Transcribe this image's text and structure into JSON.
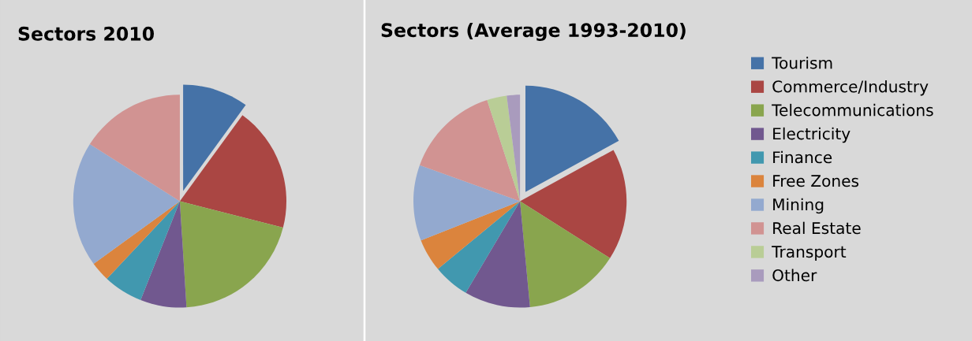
{
  "chart_data": [
    {
      "type": "pie",
      "title": "Sectors 2010",
      "legend": false,
      "categories": [
        null,
        null,
        null,
        null,
        null,
        null,
        null,
        null
      ],
      "values": [
        10,
        19,
        20,
        7,
        6,
        3,
        19,
        16
      ],
      "colors": [
        "#4572a7",
        "#aa4643",
        "#89a54e",
        "#71588f",
        "#4198af",
        "#db843d",
        "#93a9cf",
        "#d19392"
      ]
    },
    {
      "type": "pie",
      "title": "Sectors (Average 1993-2010)",
      "legend": "right",
      "categories": [
        "Tourism",
        "Commerce/Industry",
        "Telecommunications",
        "Electricity",
        "Finance",
        "Free Zones",
        "Mining",
        "Real Estate",
        "Transport",
        "Other"
      ],
      "values": [
        17,
        17,
        14.5,
        10,
        5.5,
        5,
        11.5,
        14.5,
        3,
        2
      ],
      "colors": [
        "#4572a7",
        "#aa4643",
        "#89a54e",
        "#71588f",
        "#4198af",
        "#db843d",
        "#93a9cf",
        "#d19392",
        "#b9cd96",
        "#a99bbd"
      ]
    }
  ]
}
